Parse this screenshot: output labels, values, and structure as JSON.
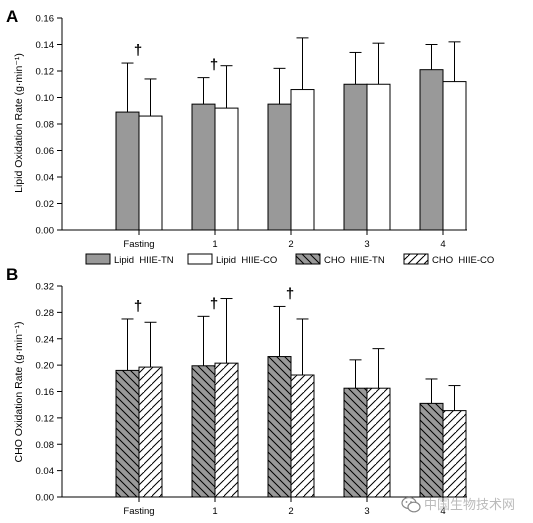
{
  "chart_data": [
    {
      "panel_label": "A",
      "type": "bar",
      "ylabel": "Lipid Oxidation Rate (g·min⁻¹)",
      "ylim": [
        0,
        0.16
      ],
      "yticks": [
        "0.00",
        "0.02",
        "0.04",
        "0.06",
        "0.08",
        "0.10",
        "0.12",
        "0.14",
        "0.16"
      ],
      "categories": [
        "Fasting",
        "1",
        "2",
        "3",
        "4"
      ],
      "grid": false,
      "series": [
        {
          "name": "Lipid HIIE-TN",
          "values": [
            0.089,
            0.095,
            0.095,
            0.11,
            0.121
          ],
          "errors": [
            0.037,
            0.02,
            0.027,
            0.024,
            0.019
          ],
          "fill": "#999999",
          "pattern": "solid"
        },
        {
          "name": "Lipid HIIE-CO",
          "values": [
            0.086,
            0.092,
            0.106,
            0.11,
            0.112
          ],
          "errors": [
            0.028,
            0.032,
            0.039,
            0.031,
            0.03
          ],
          "fill": "#ffffff",
          "pattern": "solid"
        }
      ],
      "annotations": [
        {
          "category": "Fasting",
          "text": "†"
        },
        {
          "category": "1",
          "text": "†"
        }
      ]
    },
    {
      "panel_label": "B",
      "type": "bar",
      "ylabel": "CHO Oxidation Rate (g·min⁻¹)",
      "ylim": [
        0,
        0.32
      ],
      "yticks": [
        "0.00",
        "0.04",
        "0.08",
        "0.12",
        "0.16",
        "0.20",
        "0.24",
        "0.28",
        "0.32"
      ],
      "categories": [
        "Fasting",
        "1",
        "2",
        "3",
        "4"
      ],
      "grid": false,
      "series": [
        {
          "name": "CHO HIIE-TN",
          "values": [
            0.192,
            0.199,
            0.213,
            0.165,
            0.142
          ],
          "errors": [
            0.078,
            0.075,
            0.076,
            0.043,
            0.037
          ],
          "fill": "#999999",
          "pattern": "hatch-back"
        },
        {
          "name": "CHO HIIE-CO",
          "values": [
            0.197,
            0.203,
            0.185,
            0.165,
            0.131
          ],
          "errors": [
            0.068,
            0.098,
            0.085,
            0.06,
            0.038
          ],
          "fill": "#ffffff",
          "pattern": "hatch-forward"
        }
      ],
      "annotations": [
        {
          "category": "Fasting",
          "text": "†"
        },
        {
          "category": "1",
          "text": "†"
        },
        {
          "category": "2",
          "text": "†"
        }
      ]
    }
  ],
  "legend": {
    "placement": "between-panels",
    "items": [
      {
        "label": "Lipid  HIIE-TN",
        "fill": "#999999",
        "pattern": "solid"
      },
      {
        "label": "Lipid  HIIE-CO",
        "fill": "#ffffff",
        "pattern": "solid"
      },
      {
        "label": "CHO  HIIE-TN",
        "fill": "#999999",
        "pattern": "hatch-back"
      },
      {
        "label": "CHO  HIIE-CO",
        "fill": "#ffffff",
        "pattern": "hatch-forward"
      }
    ]
  },
  "watermark": {
    "text": "中国生物技术网",
    "icon": "wechat-icon"
  }
}
